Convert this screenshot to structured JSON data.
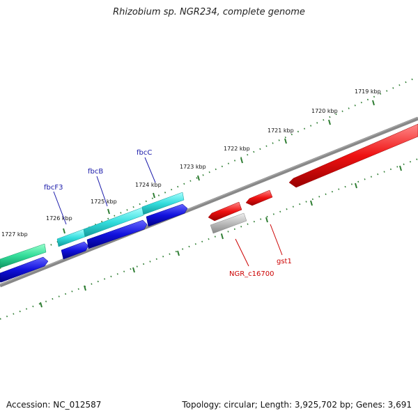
{
  "title": "Rhizobium sp. NGR234, complete genome",
  "footer": {
    "accession": "Accession: NC_012587",
    "summary": "Topology: circular; Length: 3,925,702 bp; Genes: 3,691"
  },
  "colors": {
    "backbone": "#888888",
    "tick": "#2e7d32",
    "forward_label": "#1a1aaa",
    "reverse_label": "#cc0000",
    "gene_cyan": "#33dddd",
    "gene_blue": "#1111dd",
    "gene_red": "#ee1111",
    "gene_gray": "#bbbbbb",
    "gene_teal": "#33dd99"
  },
  "ticks": [
    {
      "label": "1727 kbp"
    },
    {
      "label": "1726 kbp"
    },
    {
      "label": "1725 kbp"
    },
    {
      "label": "1724 kbp"
    },
    {
      "label": "1723 kbp"
    },
    {
      "label": "1722 kbp"
    },
    {
      "label": "1721 kbp"
    },
    {
      "label": "1720 kbp"
    },
    {
      "label": "1719 kbp"
    }
  ],
  "gene_labels": [
    {
      "name": "fbcF3",
      "strand": "forward"
    },
    {
      "name": "fbcB",
      "strand": "forward"
    },
    {
      "name": "fbcC",
      "strand": "forward"
    },
    {
      "name": "NGR_c16700",
      "strand": "reverse"
    },
    {
      "name": "gst1",
      "strand": "reverse"
    }
  ]
}
